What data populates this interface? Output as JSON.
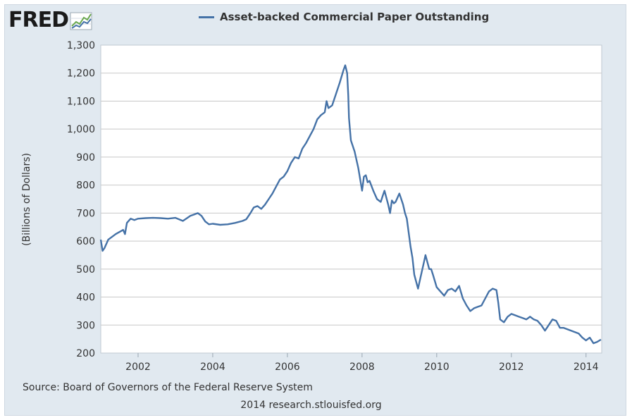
{
  "logo": {
    "text": "FRED",
    "icon": "line-graph-icon"
  },
  "chart_data": {
    "type": "line",
    "title": "",
    "xlabel": "",
    "ylabel": "(Billions of Dollars)",
    "xlim": [
      2001.0,
      2014.42
    ],
    "ylim": [
      200,
      1300
    ],
    "x_ticks": [
      "2002",
      "2004",
      "2006",
      "2008",
      "2010",
      "2012",
      "2014"
    ],
    "y_ticks": [
      "200",
      "300",
      "400",
      "500",
      "600",
      "700",
      "800",
      "900",
      "1,000",
      "1,100",
      "1,200",
      "1,300"
    ],
    "grid": true,
    "legend_position": "top-center",
    "series": [
      {
        "name": "Asset-backed Commercial Paper Outstanding",
        "color": "#4572a7",
        "x": [
          2001.0,
          2001.05,
          2001.1,
          2001.2,
          2001.4,
          2001.6,
          2001.65,
          2001.7,
          2001.8,
          2001.9,
          2002.0,
          2002.2,
          2002.4,
          2002.6,
          2002.8,
          2003.0,
          2003.2,
          2003.4,
          2003.5,
          2003.6,
          2003.7,
          2003.8,
          2003.85,
          2003.9,
          2004.0,
          2004.2,
          2004.4,
          2004.6,
          2004.8,
          2004.9,
          2005.0,
          2005.1,
          2005.2,
          2005.3,
          2005.4,
          2005.5,
          2005.6,
          2005.7,
          2005.8,
          2005.9,
          2006.0,
          2006.1,
          2006.2,
          2006.3,
          2006.4,
          2006.5,
          2006.6,
          2006.7,
          2006.8,
          2006.9,
          2007.0,
          2007.05,
          2007.1,
          2007.2,
          2007.3,
          2007.4,
          2007.5,
          2007.55,
          2007.6,
          2007.63,
          2007.65,
          2007.7,
          2007.8,
          2007.9,
          2008.0,
          2008.05,
          2008.1,
          2008.15,
          2008.2,
          2008.3,
          2008.4,
          2008.45,
          2008.5,
          2008.55,
          2008.6,
          2008.7,
          2008.75,
          2008.8,
          2008.85,
          2008.9,
          2009.0,
          2009.05,
          2009.1,
          2009.15,
          2009.2,
          2009.3,
          2009.35,
          2009.4,
          2009.5,
          2009.6,
          2009.65,
          2009.7,
          2009.8,
          2009.85,
          2009.9,
          2010.0,
          2010.1,
          2010.2,
          2010.3,
          2010.4,
          2010.5,
          2010.6,
          2010.7,
          2010.8,
          2010.9,
          2011.0,
          2011.1,
          2011.2,
          2011.3,
          2011.4,
          2011.5,
          2011.6,
          2011.65,
          2011.7,
          2011.8,
          2011.9,
          2012.0,
          2012.1,
          2012.2,
          2012.3,
          2012.4,
          2012.5,
          2012.6,
          2012.7,
          2012.8,
          2012.9,
          2013.0,
          2013.1,
          2013.2,
          2013.3,
          2013.4,
          2013.5,
          2013.6,
          2013.7,
          2013.8,
          2013.9,
          2014.0,
          2014.1,
          2014.2,
          2014.3,
          2014.4
        ],
        "values": [
          605,
          565,
          575,
          605,
          625,
          640,
          625,
          665,
          680,
          675,
          680,
          682,
          683,
          682,
          680,
          683,
          672,
          690,
          695,
          700,
          690,
          670,
          665,
          660,
          662,
          658,
          660,
          665,
          672,
          678,
          698,
          720,
          725,
          715,
          730,
          750,
          770,
          795,
          820,
          830,
          850,
          880,
          900,
          895,
          930,
          950,
          975,
          1000,
          1035,
          1050,
          1060,
          1100,
          1075,
          1085,
          1125,
          1165,
          1210,
          1228,
          1200,
          1120,
          1040,
          960,
          920,
          860,
          780,
          830,
          835,
          810,
          815,
          780,
          750,
          745,
          740,
          760,
          780,
          730,
          700,
          745,
          735,
          740,
          770,
          750,
          730,
          700,
          680,
          580,
          540,
          480,
          430,
          490,
          520,
          550,
          500,
          500,
          480,
          435,
          420,
          405,
          425,
          430,
          420,
          440,
          395,
          370,
          350,
          360,
          365,
          370,
          395,
          420,
          430,
          425,
          380,
          320,
          310,
          330,
          340,
          335,
          330,
          325,
          320,
          330,
          320,
          315,
          300,
          280,
          300,
          320,
          315,
          290,
          290,
          285,
          280,
          275,
          270,
          255,
          245,
          255,
          235,
          240,
          248
        ]
      }
    ]
  },
  "source": "Source: Board of Governors of the Federal Reserve System",
  "credit": "2014 research.stlouisfed.org"
}
